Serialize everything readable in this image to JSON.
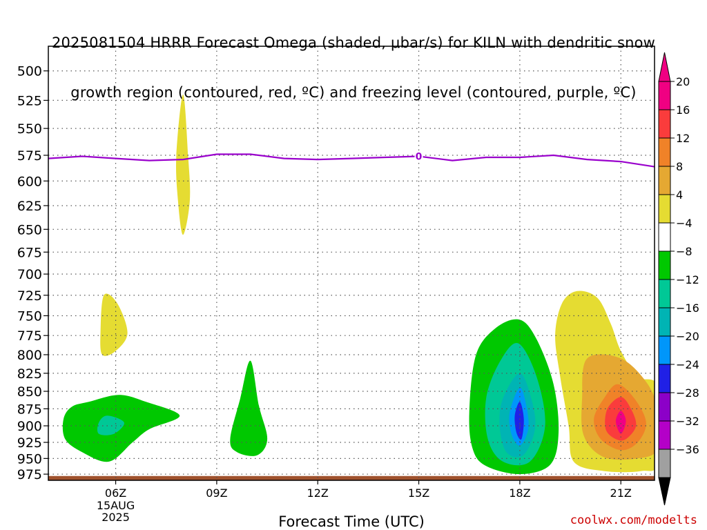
{
  "title_line1": "2025081504 HRRR Forecast Omega (shaded, μbar/s) for KILN with dendritic snow",
  "title_line2": "growth region (contoured, red, ºC) and freezing level (contoured, purple, ºC)",
  "credit": "coolwx.com/modelts",
  "chart_data": {
    "type": "contour",
    "title": "2025081504 HRRR Forecast Omega (shaded, μbar/s) for KILN with dendritic snow growth region (contoured, red, ºC) and freezing level (contoured, purple, ºC)",
    "xlabel": "Forecast Time (UTC)",
    "ylabel": "",
    "x_ticks": [
      {
        "hour": 6,
        "label": "06Z",
        "sub": [
          "15AUG",
          "2025"
        ]
      },
      {
        "hour": 9,
        "label": "09Z",
        "sub": []
      },
      {
        "hour": 12,
        "label": "12Z",
        "sub": []
      },
      {
        "hour": 15,
        "label": "15Z",
        "sub": []
      },
      {
        "hour": 18,
        "label": "18Z",
        "sub": []
      },
      {
        "hour": 21,
        "label": "21Z",
        "sub": []
      }
    ],
    "xlim_hours": [
      4,
      22
    ],
    "y_ticks": [
      500,
      525,
      550,
      575,
      600,
      625,
      650,
      675,
      700,
      725,
      750,
      775,
      800,
      825,
      850,
      875,
      900,
      925,
      950,
      975
    ],
    "ylim_hPa": [
      480,
      985
    ],
    "y_scale": "log-pressure",
    "grid": true,
    "freezing_level": {
      "label": "0",
      "color": "#9900cc",
      "points": [
        [
          4.0,
          578
        ],
        [
          5.0,
          576
        ],
        [
          6.0,
          578
        ],
        [
          7.0,
          580
        ],
        [
          8.0,
          579
        ],
        [
          9.0,
          574
        ],
        [
          10.0,
          574
        ],
        [
          11.0,
          578
        ],
        [
          12.0,
          579
        ],
        [
          13.0,
          578
        ],
        [
          14.0,
          577
        ],
        [
          15.0,
          576
        ],
        [
          16.0,
          580
        ],
        [
          17.0,
          577
        ],
        [
          18.0,
          577
        ],
        [
          19.0,
          575
        ],
        [
          20.0,
          579
        ],
        [
          21.0,
          581
        ],
        [
          22.0,
          586
        ]
      ]
    },
    "omega_regions": [
      {
        "level": 4,
        "color": "#e5dc32",
        "points": [
          [
            8.0,
            520
          ],
          [
            8.15,
            575
          ],
          [
            8.2,
            620
          ],
          [
            8.0,
            656
          ],
          [
            7.85,
            620
          ],
          [
            7.8,
            575
          ]
        ]
      },
      {
        "level": 4,
        "color": "#e5dc32",
        "points": [
          [
            5.65,
            725
          ],
          [
            6.05,
            735
          ],
          [
            6.35,
            772
          ],
          [
            6.0,
            795
          ],
          [
            5.6,
            800
          ],
          [
            5.55,
            770
          ]
        ]
      },
      {
        "level": -4,
        "color": "#00c800",
        "points": [
          [
            5.2,
            865
          ],
          [
            6.1,
            855
          ],
          [
            6.9,
            865
          ],
          [
            7.9,
            885
          ],
          [
            7.0,
            905
          ],
          [
            6.5,
            925
          ],
          [
            5.8,
            955
          ],
          [
            5.0,
            940
          ],
          [
            4.5,
            920
          ],
          [
            4.45,
            890
          ],
          [
            4.7,
            872
          ]
        ]
      },
      {
        "level": -8,
        "color": "#00c896",
        "points": [
          [
            5.5,
            895
          ],
          [
            5.75,
            885
          ],
          [
            6.25,
            895
          ],
          [
            5.95,
            912
          ],
          [
            5.5,
            912
          ]
        ]
      },
      {
        "level": -4,
        "color": "#00c800",
        "points": [
          [
            10.0,
            808
          ],
          [
            10.25,
            870
          ],
          [
            10.5,
            920
          ],
          [
            10.2,
            945
          ],
          [
            9.6,
            940
          ],
          [
            9.4,
            920
          ],
          [
            9.7,
            860
          ]
        ]
      },
      {
        "level": 4,
        "color": "#e5dc32",
        "points": [
          [
            19.7,
            720
          ],
          [
            20.3,
            728
          ],
          [
            20.7,
            760
          ],
          [
            21.0,
            795
          ],
          [
            21.5,
            830
          ],
          [
            22.1,
            845
          ],
          [
            22.1,
            955
          ],
          [
            21.6,
            970
          ],
          [
            20.5,
            970
          ],
          [
            19.6,
            955
          ],
          [
            19.45,
            900
          ],
          [
            19.2,
            830
          ],
          [
            19.05,
            775
          ],
          [
            19.25,
            735
          ]
        ]
      },
      {
        "level": 8,
        "color": "#e5a832",
        "points": [
          [
            20.0,
            805
          ],
          [
            21.0,
            805
          ],
          [
            21.8,
            840
          ],
          [
            22.1,
            880
          ],
          [
            22.1,
            935
          ],
          [
            21.5,
            950
          ],
          [
            20.5,
            948
          ],
          [
            19.9,
            915
          ],
          [
            19.85,
            860
          ]
        ]
      },
      {
        "level": 12,
        "color": "#f08228",
        "points": [
          [
            20.9,
            840
          ],
          [
            21.4,
            860
          ],
          [
            21.75,
            895
          ],
          [
            21.5,
            925
          ],
          [
            21.0,
            937
          ],
          [
            20.4,
            920
          ],
          [
            20.2,
            890
          ],
          [
            20.5,
            860
          ]
        ]
      },
      {
        "level": 16,
        "color": "#fa3c3c",
        "points": [
          [
            21.0,
            858
          ],
          [
            21.3,
            875
          ],
          [
            21.45,
            900
          ],
          [
            21.15,
            920
          ],
          [
            20.85,
            920
          ],
          [
            20.55,
            905
          ],
          [
            20.6,
            875
          ]
        ]
      },
      {
        "level": 20,
        "color": "#f00082",
        "points": [
          [
            21.0,
            878
          ],
          [
            21.15,
            893
          ],
          [
            21.0,
            912
          ],
          [
            20.85,
            893
          ]
        ]
      },
      {
        "level": -4,
        "color": "#00c800",
        "points": [
          [
            18.0,
            755
          ],
          [
            18.5,
            780
          ],
          [
            19.0,
            840
          ],
          [
            19.15,
            910
          ],
          [
            18.9,
            960
          ],
          [
            18.0,
            975
          ],
          [
            17.0,
            962
          ],
          [
            16.6,
            935
          ],
          [
            16.5,
            880
          ],
          [
            16.7,
            800
          ],
          [
            17.3,
            765
          ]
        ]
      },
      {
        "level": -8,
        "color": "#00c896",
        "points": [
          [
            17.95,
            785
          ],
          [
            18.5,
            830
          ],
          [
            18.75,
            900
          ],
          [
            18.3,
            955
          ],
          [
            17.5,
            955
          ],
          [
            17.05,
            920
          ],
          [
            17.0,
            860
          ],
          [
            17.4,
            810
          ]
        ]
      },
      {
        "level": -12,
        "color": "#00b4b4",
        "points": [
          [
            18.0,
            825
          ],
          [
            18.35,
            862
          ],
          [
            18.45,
            905
          ],
          [
            18.1,
            945
          ],
          [
            17.6,
            940
          ],
          [
            17.4,
            900
          ],
          [
            17.5,
            860
          ]
        ]
      },
      {
        "level": -16,
        "color": "#0096fa",
        "points": [
          [
            18.0,
            845
          ],
          [
            18.2,
            872
          ],
          [
            18.25,
            905
          ],
          [
            18.0,
            930
          ],
          [
            17.75,
            912
          ],
          [
            17.7,
            880
          ]
        ]
      },
      {
        "level": -20,
        "color": "#2020e6",
        "points": [
          [
            18.0,
            865
          ],
          [
            18.12,
            890
          ],
          [
            18.05,
            920
          ],
          [
            17.9,
            910
          ],
          [
            17.85,
            885
          ]
        ]
      }
    ],
    "terrain": {
      "color": "#a0522d",
      "top_hPa": 978
    },
    "colorbar": [
      {
        "label": "20",
        "color": "#f00082"
      },
      {
        "label": "16",
        "color": "#fa3c3c"
      },
      {
        "label": "12",
        "color": "#f08228"
      },
      {
        "label": "8",
        "color": "#e5a832"
      },
      {
        "label": "4",
        "color": "#e5dc32"
      },
      {
        "label": "−4",
        "color": "#ffffff"
      },
      {
        "label": "−8",
        "color": "#00c800"
      },
      {
        "label": "−12",
        "color": "#00c896"
      },
      {
        "label": "−16",
        "color": "#00b4b4"
      },
      {
        "label": "−20",
        "color": "#0096fa"
      },
      {
        "label": "−24",
        "color": "#2020e6"
      },
      {
        "label": "−28",
        "color": "#8c00c8"
      },
      {
        "label": "−32",
        "color": "#b400c8"
      },
      {
        "label": "−36",
        "color": "#a0a0a0"
      }
    ],
    "colorbar_top_color": "#f00082",
    "colorbar_bottom_color": "#000000"
  }
}
